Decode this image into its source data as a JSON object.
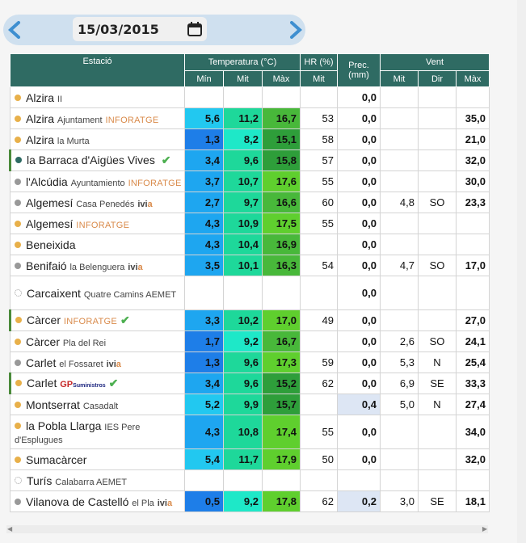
{
  "date": "15/03/2015",
  "headers": {
    "station": "Estació",
    "temp": "Temperatura (°C)",
    "hr": "HR (%)",
    "prec": "Prec. (mm)",
    "wind": "Vent",
    "min": "Mín",
    "mit": "Mit",
    "max": "Màx",
    "dir": "Dir"
  },
  "colors": {
    "header": "#2f6b63",
    "min": "#1e90ff",
    "mit": "#1de9b6",
    "max": "#4caf50"
  },
  "rows": [
    {
      "name": "Alzira",
      "sub": "II",
      "dot": "#e8b04a",
      "min": "",
      "mit": "",
      "max": "",
      "hr": "",
      "prec": "0,0",
      "wmit": "",
      "wdir": "",
      "wmax": ""
    },
    {
      "name": "Alzira",
      "sub": "Ajuntament",
      "tag": "INFORATGE",
      "dot": "#e8b04a",
      "min": "5,6",
      "mit": "11,2",
      "max": "16,7",
      "hr": "53",
      "prec": "0,0",
      "wmit": "",
      "wdir": "",
      "wmax": "35,0"
    },
    {
      "name": "Alzira",
      "sub": "la Murta",
      "dot": "#e8b04a",
      "min": "1,3",
      "mit": "8,2",
      "max": "15,1",
      "hr": "58",
      "prec": "0,0",
      "wmit": "",
      "wdir": "",
      "wmax": "21,0"
    },
    {
      "name": "la Barraca d'Aigües Vives",
      "dot": "#2f6b63",
      "check": true,
      "sel": true,
      "min": "3,4",
      "mit": "9,6",
      "max": "15,8",
      "hr": "57",
      "prec": "0,0",
      "wmit": "",
      "wdir": "",
      "wmax": "32,0"
    },
    {
      "name": "l'Alcúdia",
      "sub": "Ayuntamiento",
      "tag": "INFORATGE",
      "dot": "#999",
      "min": "3,7",
      "mit": "10,7",
      "max": "17,6",
      "hr": "55",
      "prec": "0,0",
      "wmit": "",
      "wdir": "",
      "wmax": "30,0"
    },
    {
      "name": "Algemesí",
      "sub": "Casa Penedés",
      "ivia": true,
      "dot": "#999",
      "min": "2,7",
      "mit": "9,7",
      "max": "16,6",
      "hr": "60",
      "prec": "0,0",
      "wmit": "4,8",
      "wdir": "SO",
      "wmax": "23,3"
    },
    {
      "name": "Algemesí",
      "tag": "INFORATGE",
      "dot": "#e8b04a",
      "min": "4,3",
      "mit": "10,9",
      "max": "17,5",
      "hr": "55",
      "prec": "0,0",
      "wmit": "",
      "wdir": "",
      "wmax": ""
    },
    {
      "name": "Beneixida",
      "dot": "#e8b04a",
      "min": "4,3",
      "mit": "10,4",
      "max": "16,9",
      "hr": "",
      "prec": "0,0",
      "wmit": "",
      "wdir": "",
      "wmax": ""
    },
    {
      "name": "Benifaió",
      "sub": "la Belenguera",
      "ivia": true,
      "dot": "#999",
      "min": "3,5",
      "mit": "10,1",
      "max": "16,3",
      "hr": "54",
      "prec": "0,0",
      "wmit": "4,7",
      "wdir": "SO",
      "wmax": "17,0"
    },
    {
      "name": "Carcaixent",
      "sub": "Quatre Camins AEMET",
      "dot": "none",
      "tall": true,
      "min": "",
      "mit": "",
      "max": "",
      "hr": "",
      "prec": "0,0",
      "wmit": "",
      "wdir": "",
      "wmax": ""
    },
    {
      "name": "Càrcer",
      "tag": "INFORATGE",
      "check": true,
      "sel": true,
      "dot": "#e8b04a",
      "min": "3,3",
      "mit": "10,2",
      "max": "17,0",
      "hr": "49",
      "prec": "0,0",
      "wmit": "",
      "wdir": "",
      "wmax": "27,0"
    },
    {
      "name": "Càrcer",
      "sub": "Pla del Rei",
      "dot": "#e8b04a",
      "min": "1,7",
      "mit": "9,2",
      "max": "16,7",
      "hr": "",
      "prec": "0,0",
      "wmit": "2,6",
      "wdir": "SO",
      "wmax": "24,1"
    },
    {
      "name": "Carlet",
      "sub": "el Fossaret",
      "ivia": true,
      "dot": "#999",
      "min": "1,3",
      "mit": "9,6",
      "max": "17,3",
      "hr": "59",
      "prec": "0,0",
      "wmit": "5,3",
      "wdir": "N",
      "wmax": "25,4"
    },
    {
      "name": "Carlet",
      "gp": true,
      "check": true,
      "sel": true,
      "dot": "#e8b04a",
      "min": "3,4",
      "mit": "9,6",
      "max": "15,2",
      "hr": "62",
      "prec": "0,0",
      "wmit": "6,9",
      "wdir": "SE",
      "wmax": "33,3"
    },
    {
      "name": "Montserrat",
      "sub": "Casadalt",
      "dot": "#e8b04a",
      "min": "5,2",
      "mit": "9,9",
      "max": "15,7",
      "hr": "",
      "prec": "0,4",
      "precHi": true,
      "wmit": "5,0",
      "wdir": "N",
      "wmax": "27,4"
    },
    {
      "name": "la Pobla Llarga",
      "sub": "IES Pere d'Esplugues",
      "dot": "#e8b04a",
      "tall": true,
      "min": "4,3",
      "mit": "10,8",
      "max": "17,4",
      "hr": "55",
      "prec": "0,0",
      "wmit": "",
      "wdir": "",
      "wmax": "34,0"
    },
    {
      "name": "Sumacàrcer",
      "dot": "#e8b04a",
      "min": "5,4",
      "mit": "11,7",
      "max": "17,9",
      "hr": "50",
      "prec": "0,0",
      "wmit": "",
      "wdir": "",
      "wmax": "32,0"
    },
    {
      "name": "Turís",
      "sub": "Calabarra AEMET",
      "dot": "none",
      "min": "",
      "mit": "",
      "max": "",
      "hr": "",
      "prec": "",
      "wmit": "",
      "wdir": "",
      "wmax": ""
    },
    {
      "name": "Vilanova de Castelló",
      "sub": "el Pla",
      "ivia": true,
      "dot": "#999",
      "min": "0,5",
      "mit": "9,2",
      "max": "17,8",
      "hr": "62",
      "prec": "0,2",
      "precHi": true,
      "wmit": "3,0",
      "wdir": "SE",
      "wmax": "18,1"
    }
  ]
}
